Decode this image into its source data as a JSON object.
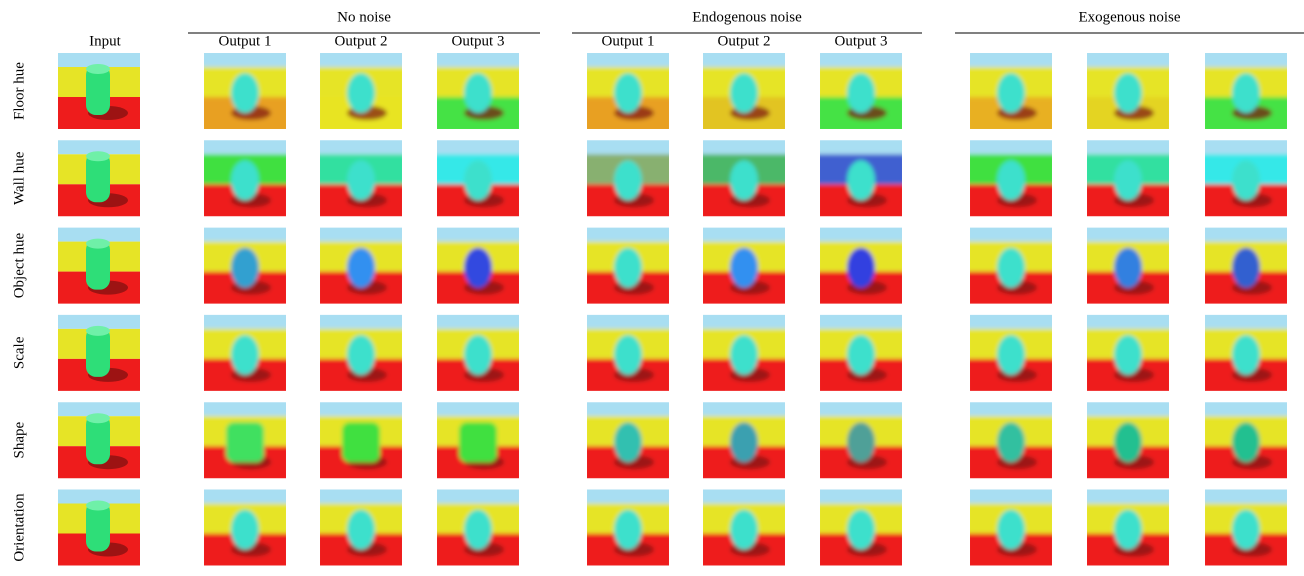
{
  "input_label": "Input",
  "column_groups": [
    {
      "title": "No noise",
      "columns": [
        "Output 1",
        "Output 2",
        "Output 3"
      ]
    },
    {
      "title": "Endogenous noise",
      "columns": [
        "Output 1",
        "Output 2",
        "Output 3"
      ]
    },
    {
      "title": "Exogenous noise"
    }
  ],
  "rows": [
    "Floor hue",
    "Wall hue",
    "Object hue",
    "Scale",
    "Shape",
    "Orientation"
  ]
}
